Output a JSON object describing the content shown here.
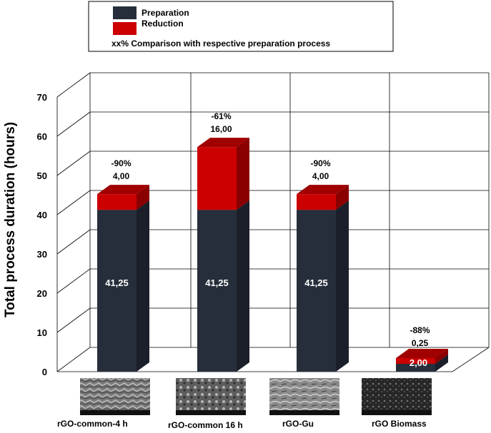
{
  "legend": {
    "series_1": "Preparation",
    "series_2": "Reduction",
    "note": "xx% Comparison with respective preparation process"
  },
  "colors": {
    "preparation": "#262e3b",
    "preparation_side": "#1a1f29",
    "preparation_top": "#3a4352",
    "reduction": "#cc0000",
    "reduction_side": "#8a0000",
    "reduction_top": "#a00000"
  },
  "chart_data": {
    "type": "bar",
    "stacked": true,
    "three_d": true,
    "ylabel": "Total process duration (hours)",
    "xlabel": "",
    "ylim": [
      0,
      70
    ],
    "yticks": [
      "0",
      "10",
      "20",
      "30",
      "40",
      "50",
      "60",
      "70"
    ],
    "grid": true,
    "legend_position": "top-center",
    "categories": [
      "rGO-common-4 h",
      "rGO-common 16 h",
      "rGO-Gu",
      "rGO Biomass"
    ],
    "series": [
      {
        "name": "Preparation",
        "values": [
          41.25,
          41.25,
          41.25,
          2.0
        ]
      },
      {
        "name": "Reduction",
        "values": [
          4.0,
          16.0,
          4.0,
          0.25
        ]
      }
    ],
    "value_labels": {
      "preparation": [
        "41,25",
        "41,25",
        "41,25",
        "2,00"
      ],
      "reduction": [
        "4,00",
        "16,00",
        "4,00",
        "0,25"
      ],
      "comparison_percent": [
        "-90%",
        "-61%",
        "-90%",
        "-88%"
      ]
    }
  }
}
